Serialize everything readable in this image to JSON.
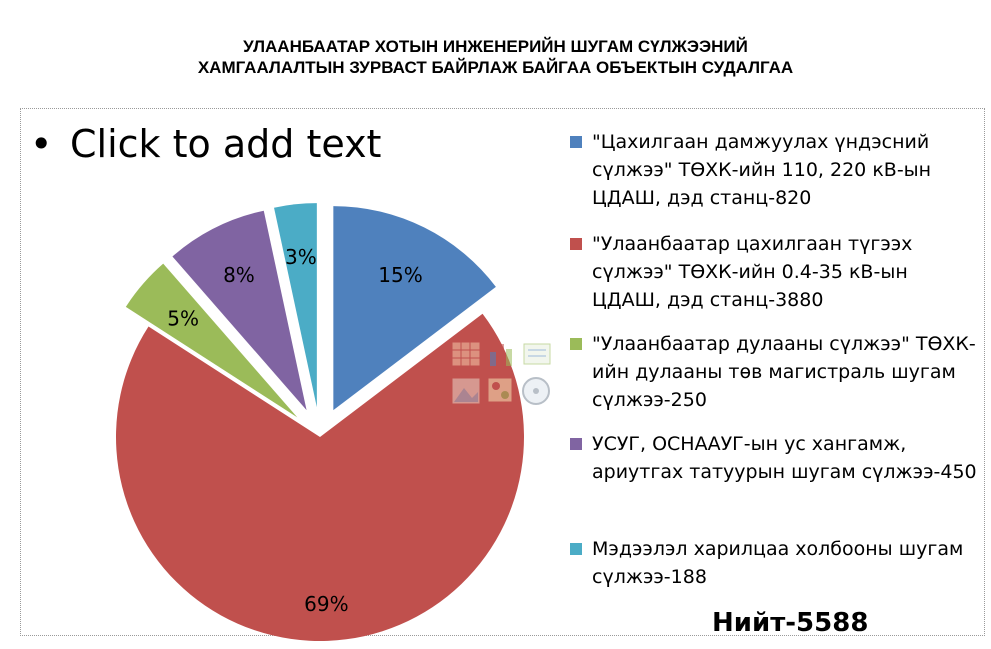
{
  "title": {
    "line1": "УЛААНБААТАР ХОТЫН ИНЖЕНЕРИЙН  ШУГАМ СҮЛЖЭЭНИЙ",
    "line2": "ХАМГААЛАЛТЫН ЗУРВАСТ БАЙРЛАЖ БАЙГАА ОБЪЕКТЫН СУДАЛГАА"
  },
  "placeholder": {
    "bullet": "•",
    "text": "Click to add text"
  },
  "total_label": "Нийт-5588",
  "colors": {
    "blue": "#4F81BD",
    "red": "#C0504D",
    "green": "#9BBB59",
    "purple": "#8064A2",
    "teal": "#4BACC6"
  },
  "chart_data": {
    "type": "pie",
    "title": "УЛААНБААТАР ХОТЫН ИНЖЕНЕРИЙН  ШУГАМ СҮЛЖЭЭНИЙ ХАМГААЛАЛТЫН ЗУРВАСТ БАЙРЛАЖ БАЙГАА ОБЪЕКТЫН СУДАЛГАА",
    "exploded": true,
    "legend_position": "right",
    "slices": [
      {
        "label": "\"Цахилгаан дамжуулах үндэсний сүлжээ\" ТӨХК-ийн 110, 220 кВ-ын ЦДАШ, дэд станц-820",
        "value": 820,
        "percent_label": "15%",
        "color": "#4F81BD"
      },
      {
        "label": "\"Улаанбаатар цахилгаан түгээх сүлжээ\" ТӨХК-ийн 0.4-35 кВ-ын ЦДАШ, дэд станц-3880",
        "value": 3880,
        "percent_label": "69%",
        "color": "#C0504D"
      },
      {
        "label": "\"Улаанбаатар дулааны сүлжээ\" ТӨХК-ийн дулааны төв магистраль шугам сүлжээ-250",
        "value": 250,
        "percent_label": "5%",
        "color": "#9BBB59"
      },
      {
        "label": "УСУГ, ОСНААУГ-ын ус хангамж, ариутгах татуурын шугам сүлжээ-450",
        "value": 450,
        "percent_label": "8%",
        "color": "#8064A2"
      },
      {
        "label": "Мэдээлэл харилцаа холбооны шугам сүлжээ-188",
        "value": 188,
        "percent_label": "3%",
        "color": "#4BACC6"
      }
    ]
  }
}
